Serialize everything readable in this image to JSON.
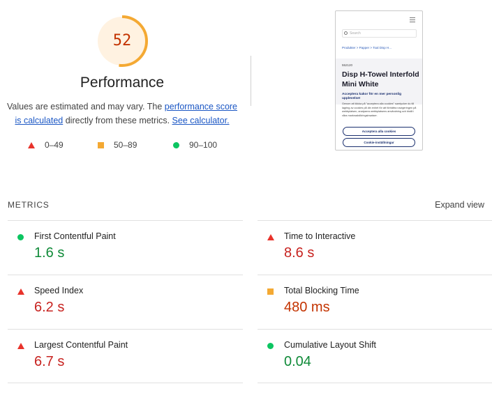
{
  "score": {
    "value": "52",
    "fraction": 0.52,
    "arc_color": "#f4a933",
    "track_color": "#fff2e1",
    "title": "Performance",
    "desc_prefix": "Values are estimated and may vary. The ",
    "link_score": "performance score is calculated",
    "desc_middle": " directly from these metrics. ",
    "link_calc": "See calculator."
  },
  "legend": {
    "poor": {
      "icon": "red-triangle-icon",
      "label": "0–49",
      "color": "#e8332b"
    },
    "average": {
      "icon": "orange-square-icon",
      "label": "50–89",
      "color": "#f4a933"
    },
    "good": {
      "icon": "green-circle-icon",
      "label": "90–100",
      "color": "#0cc561"
    }
  },
  "screenshot": {
    "search_placeholder": "Search",
    "breadcrumb": "Produkter > Papper > Toal Disp H...",
    "article_no": "552120",
    "product_name": "Disp H-Towel Interfold Mini White",
    "cookie_title": "Acceptera kakor för en mer personlig upplevelse!",
    "cookie_body": "Genom att klicka på \"acceptera alla cookies\" samtycker du till lagring av cookies på din enhet för att förbättra navigeringen på webbplatsen, analysera webbplatsens användning och bistå i våra marknadsföringsinsatser.",
    "accept_button": "Acceptera alla cookies",
    "settings_button": "Cookie-inställningar"
  },
  "metrics": {
    "header": "METRICS",
    "expand": "Expand view",
    "items": [
      {
        "label": "First Contentful Paint",
        "value": "1.6 s",
        "rating": "good"
      },
      {
        "label": "Time to Interactive",
        "value": "8.6 s",
        "rating": "poor"
      },
      {
        "label": "Speed Index",
        "value": "6.2 s",
        "rating": "poor"
      },
      {
        "label": "Total Blocking Time",
        "value": "480 ms",
        "rating": "average"
      },
      {
        "label": "Largest Contentful Paint",
        "value": "6.7 s",
        "rating": "poor"
      },
      {
        "label": "Cumulative Layout Shift",
        "value": "0.04",
        "rating": "good"
      }
    ]
  }
}
